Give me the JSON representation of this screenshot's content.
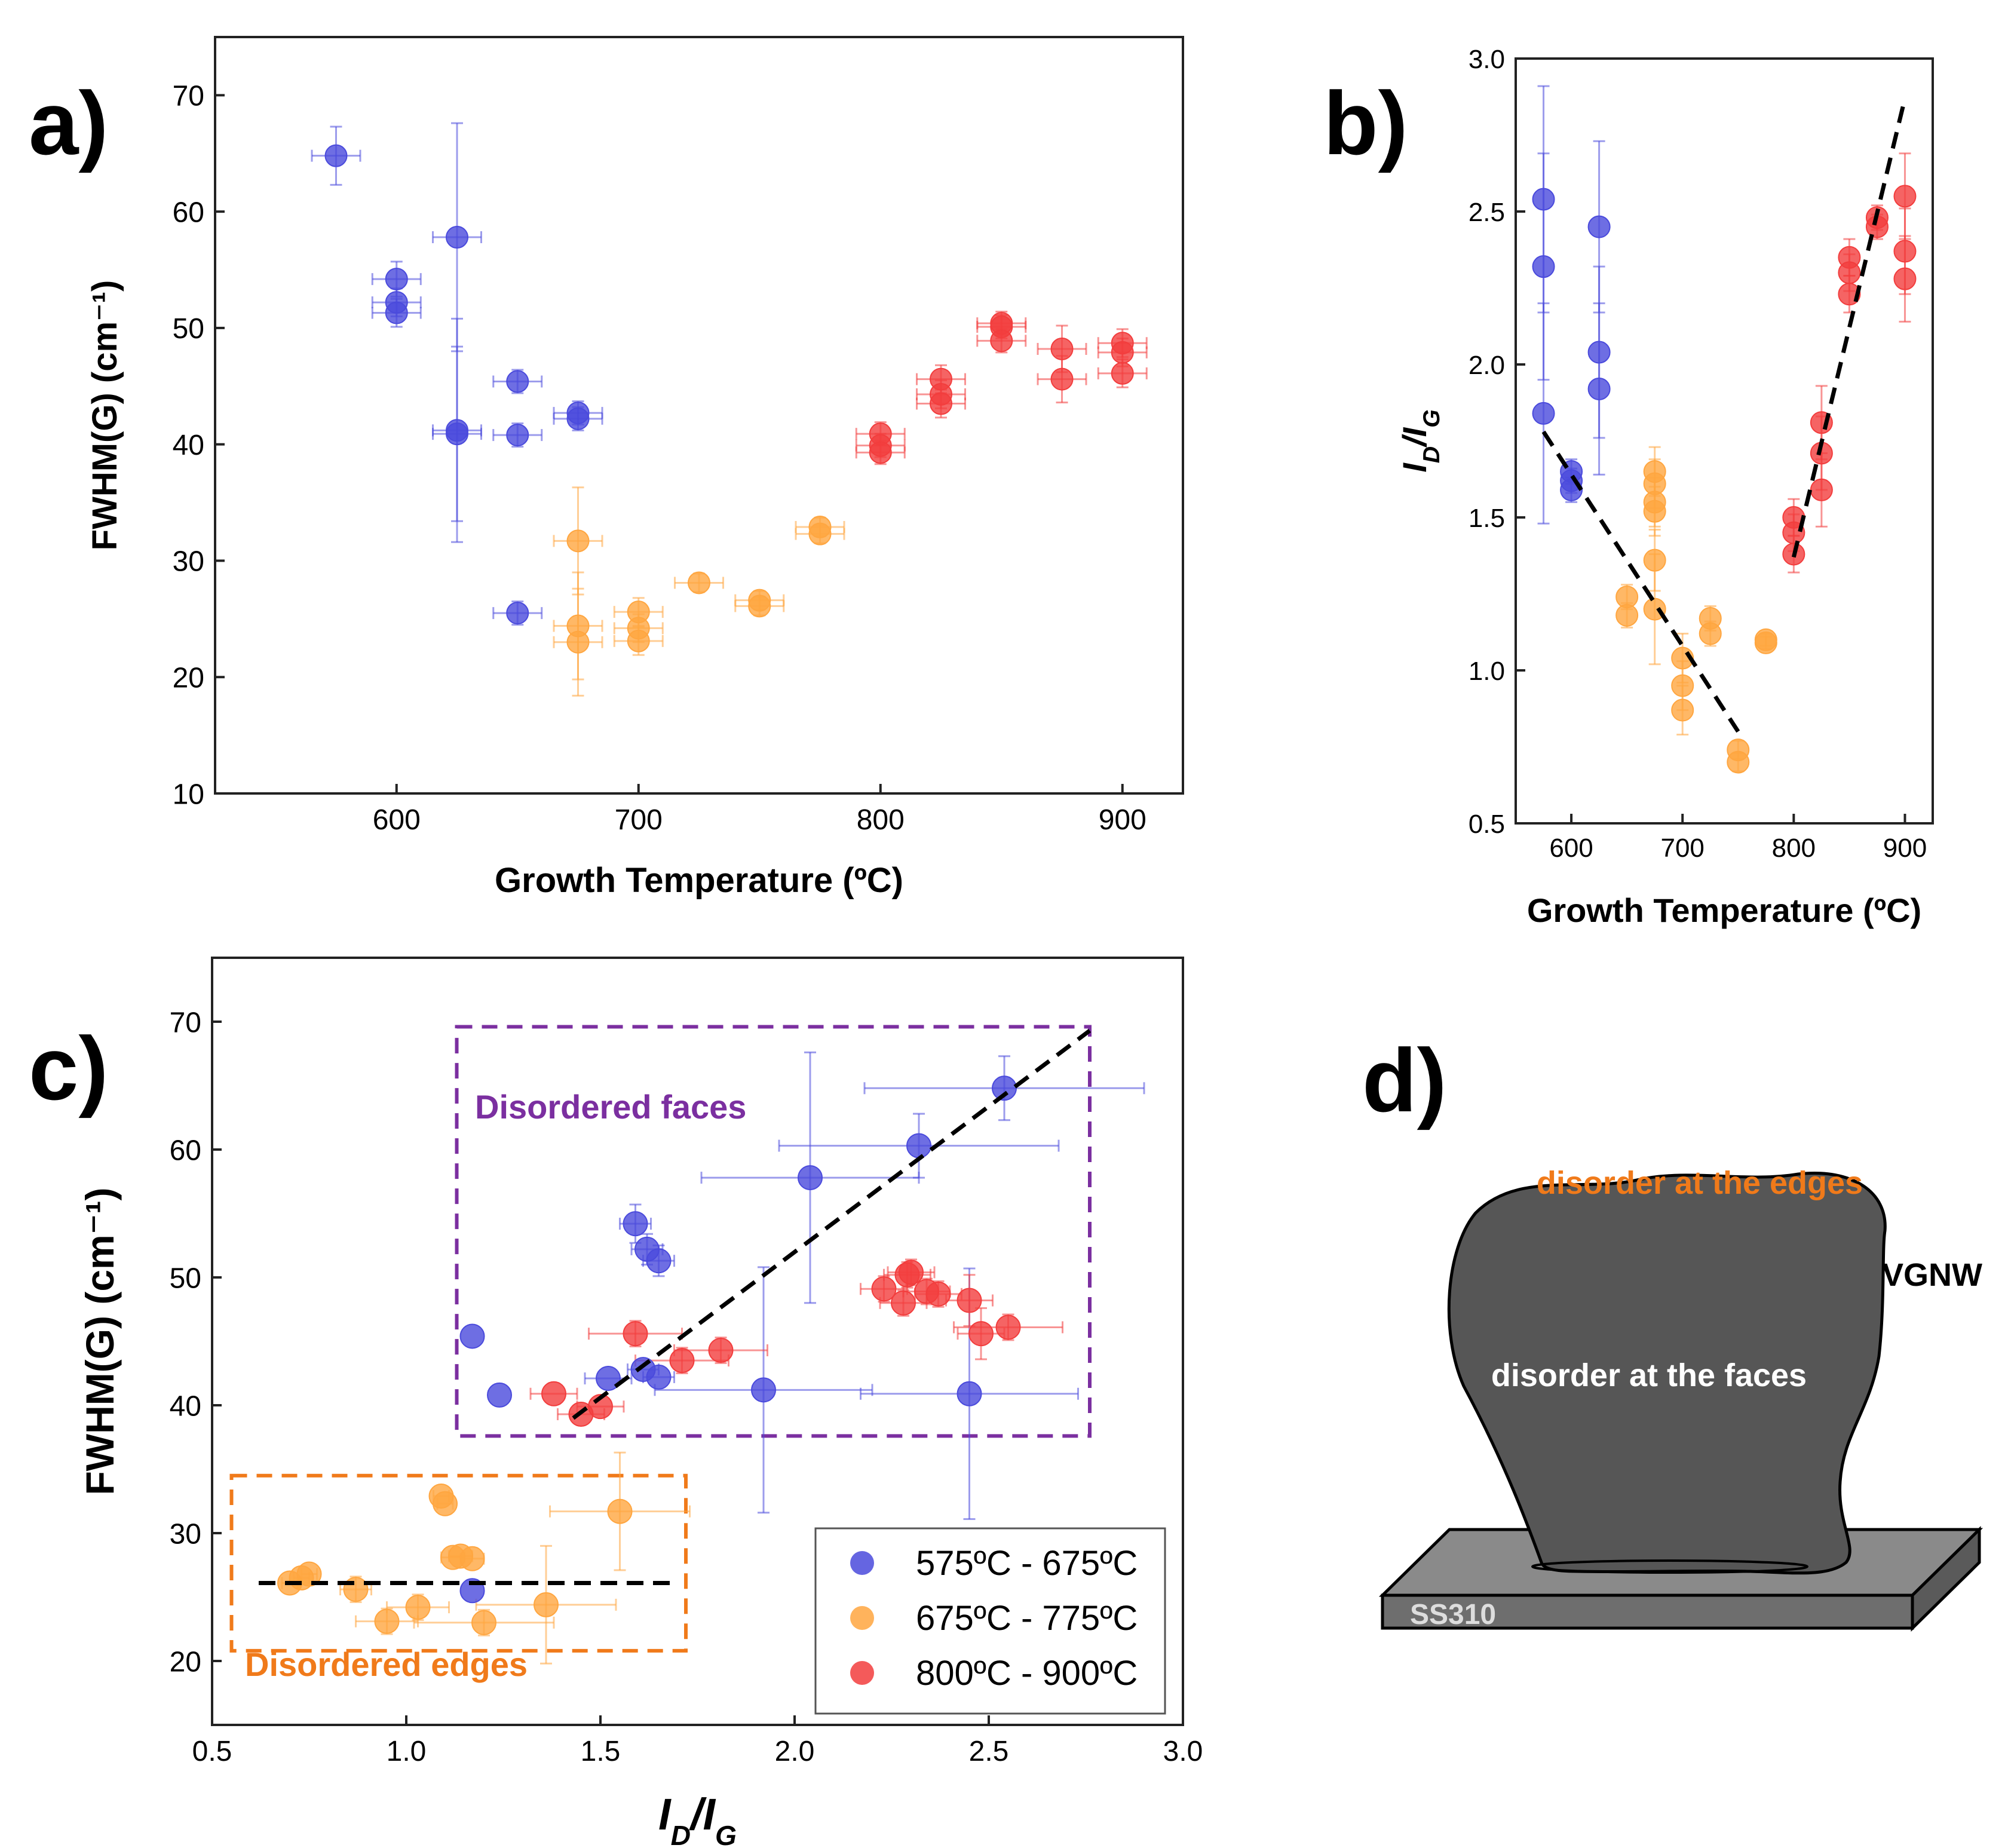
{
  "colors": {
    "blue": "#4a4adc",
    "orange": "#ffa640",
    "red": "#f23d3d",
    "axis": "#222222",
    "trend": "#000000",
    "purple_box": "#7b2fa0",
    "orange_box": "#f07a1a",
    "nanowire": "#505050",
    "substrate_top": "#8a8a8a",
    "substrate_side": "#6a6a6a"
  },
  "panel_labels": {
    "a": "a)",
    "b": "b)",
    "c": "c)",
    "d": "d)"
  },
  "chart_data": [
    {
      "id": "a",
      "type": "scatter",
      "xlabel": "Growth Temperature (ºC)",
      "ylabel": "FWHM(G) (cm⁻¹)",
      "xlim": [
        525,
        925
      ],
      "ylim": [
        10,
        75
      ],
      "xticks": [
        600,
        700,
        800,
        900
      ],
      "yticks": [
        10,
        20,
        30,
        40,
        50,
        60,
        70
      ],
      "series": [
        {
          "name": "575ºC - 675ºC",
          "color_key": "blue",
          "points": [
            {
              "x": 575,
              "y": 64.8,
              "ex": 10,
              "ey": 2.5
            },
            {
              "x": 600,
              "y": 54.2,
              "ex": 10,
              "ey": 1.5
            },
            {
              "x": 600,
              "y": 52.2,
              "ex": 10,
              "ey": 1.2
            },
            {
              "x": 600,
              "y": 51.3,
              "ex": 10,
              "ey": 1.2
            },
            {
              "x": 625,
              "y": 57.8,
              "ex": 10,
              "ey": 9.8
            },
            {
              "x": 625,
              "y": 41.2,
              "ex": 10,
              "ey": 9.6
            },
            {
              "x": 625,
              "y": 40.9,
              "ex": 10,
              "ey": 7.5
            },
            {
              "x": 650,
              "y": 45.4,
              "ex": 10,
              "ey": 1
            },
            {
              "x": 650,
              "y": 40.8,
              "ex": 10,
              "ey": 1
            },
            {
              "x": 675,
              "y": 42.7,
              "ex": 10,
              "ey": 1
            },
            {
              "x": 675,
              "y": 42.2,
              "ex": 10,
              "ey": 1
            },
            {
              "x": 650,
              "y": 25.5,
              "ex": 10,
              "ey": 1
            }
          ]
        },
        {
          "name": "675ºC - 775ºC",
          "color_key": "orange",
          "points": [
            {
              "x": 675,
              "y": 31.7,
              "ex": 10,
              "ey": 4.6
            },
            {
              "x": 675,
              "y": 24.4,
              "ex": 10,
              "ey": 4.6
            },
            {
              "x": 675,
              "y": 23.0,
              "ex": 10,
              "ey": 4.6
            },
            {
              "x": 700,
              "y": 25.6,
              "ex": 10,
              "ey": 1.2
            },
            {
              "x": 700,
              "y": 24.2,
              "ex": 10,
              "ey": 1.2
            },
            {
              "x": 700,
              "y": 23.1,
              "ex": 10,
              "ey": 1.2
            },
            {
              "x": 725,
              "y": 28.1,
              "ex": 10,
              "ey": 0.8
            },
            {
              "x": 750,
              "y": 26.6,
              "ex": 10,
              "ey": 0.8
            },
            {
              "x": 750,
              "y": 26.1,
              "ex": 10,
              "ey": 0.8
            },
            {
              "x": 775,
              "y": 32.9,
              "ex": 10,
              "ey": 0.8
            },
            {
              "x": 775,
              "y": 32.3,
              "ex": 10,
              "ey": 0.8
            }
          ]
        },
        {
          "name": "800ºC - 900ºC",
          "color_key": "red",
          "points": [
            {
              "x": 800,
              "y": 40.9,
              "ex": 10,
              "ey": 1
            },
            {
              "x": 800,
              "y": 39.9,
              "ex": 10,
              "ey": 1
            },
            {
              "x": 800,
              "y": 39.3,
              "ex": 10,
              "ey": 1
            },
            {
              "x": 825,
              "y": 45.6,
              "ex": 10,
              "ey": 1.2
            },
            {
              "x": 825,
              "y": 44.3,
              "ex": 10,
              "ey": 1.2
            },
            {
              "x": 825,
              "y": 43.5,
              "ex": 10,
              "ey": 1.2
            },
            {
              "x": 850,
              "y": 50.4,
              "ex": 10,
              "ey": 1
            },
            {
              "x": 850,
              "y": 50.1,
              "ex": 10,
              "ey": 1
            },
            {
              "x": 850,
              "y": 48.9,
              "ex": 10,
              "ey": 1
            },
            {
              "x": 875,
              "y": 48.2,
              "ex": 10,
              "ey": 2
            },
            {
              "x": 875,
              "y": 45.6,
              "ex": 10,
              "ey": 2
            },
            {
              "x": 900,
              "y": 48.7,
              "ex": 10,
              "ey": 1.2
            },
            {
              "x": 900,
              "y": 47.9,
              "ex": 10,
              "ey": 1.2
            },
            {
              "x": 900,
              "y": 46.1,
              "ex": 10,
              "ey": 1.2
            }
          ]
        }
      ]
    },
    {
      "id": "b",
      "type": "scatter",
      "xlabel": "Growth Temperature (ºC)",
      "ylabel": "ID/IG",
      "xlim": [
        550,
        925
      ],
      "ylim": [
        0.5,
        3.0
      ],
      "xticks": [
        600,
        700,
        800,
        900
      ],
      "yticks": [
        0.5,
        1.0,
        1.5,
        2.0,
        2.5,
        3.0
      ],
      "trend_lines": [
        {
          "x1": 575,
          "y1": 1.78,
          "x2": 750,
          "y2": 0.8
        },
        {
          "x1": 800,
          "y1": 1.37,
          "x2": 900,
          "y2": 2.87
        }
      ],
      "series": [
        {
          "name": "575ºC - 675ºC",
          "color_key": "blue",
          "points": [
            {
              "x": 575,
              "y": 2.54,
              "ey": 0.37
            },
            {
              "x": 575,
              "y": 2.32,
              "ey": 0.37
            },
            {
              "x": 575,
              "y": 1.84,
              "ey": 0.36
            },
            {
              "x": 600,
              "y": 1.65,
              "ey": 0.04
            },
            {
              "x": 600,
              "y": 1.62,
              "ey": 0.04
            },
            {
              "x": 600,
              "y": 1.59,
              "ey": 0.04
            },
            {
              "x": 625,
              "y": 2.45,
              "ey": 0.28
            },
            {
              "x": 625,
              "y": 2.04,
              "ey": 0.28
            },
            {
              "x": 625,
              "y": 1.92,
              "ey": 0.28
            }
          ]
        },
        {
          "name": "675ºC - 775ºC",
          "color_key": "orange",
          "points": [
            {
              "x": 650,
              "y": 1.24,
              "ey": 0.04
            },
            {
              "x": 650,
              "y": 1.18,
              "ey": 0.04
            },
            {
              "x": 675,
              "y": 1.65,
              "ey": 0.08
            },
            {
              "x": 675,
              "y": 1.61,
              "ey": 0.08
            },
            {
              "x": 675,
              "y": 1.55,
              "ey": 0.08
            },
            {
              "x": 675,
              "y": 1.52,
              "ey": 0.08
            },
            {
              "x": 675,
              "y": 1.36,
              "ey": 0.1
            },
            {
              "x": 675,
              "y": 1.2,
              "ey": 0.18
            },
            {
              "x": 700,
              "y": 1.04,
              "ey": 0.08
            },
            {
              "x": 700,
              "y": 0.95,
              "ey": 0.08
            },
            {
              "x": 700,
              "y": 0.87,
              "ey": 0.08
            },
            {
              "x": 725,
              "y": 1.17,
              "ey": 0.04
            },
            {
              "x": 725,
              "y": 1.12,
              "ey": 0.04
            },
            {
              "x": 750,
              "y": 0.74,
              "ey": 0.03
            },
            {
              "x": 750,
              "y": 0.7,
              "ey": 0.03
            },
            {
              "x": 775,
              "y": 1.1,
              "ey": 0.02
            },
            {
              "x": 775,
              "y": 1.09,
              "ey": 0.02
            }
          ]
        },
        {
          "name": "800ºC - 900ºC",
          "color_key": "red",
          "points": [
            {
              "x": 800,
              "y": 1.5,
              "ey": 0.06
            },
            {
              "x": 800,
              "y": 1.45,
              "ey": 0.06
            },
            {
              "x": 800,
              "y": 1.38,
              "ey": 0.06
            },
            {
              "x": 825,
              "y": 1.81,
              "ey": 0.12
            },
            {
              "x": 825,
              "y": 1.71,
              "ey": 0.12
            },
            {
              "x": 825,
              "y": 1.59,
              "ey": 0.12
            },
            {
              "x": 850,
              "y": 2.35,
              "ey": 0.06
            },
            {
              "x": 850,
              "y": 2.3,
              "ey": 0.06
            },
            {
              "x": 850,
              "y": 2.23,
              "ey": 0.06
            },
            {
              "x": 875,
              "y": 2.48,
              "ey": 0.04
            },
            {
              "x": 875,
              "y": 2.45,
              "ey": 0.04
            },
            {
              "x": 900,
              "y": 2.55,
              "ey": 0.14
            },
            {
              "x": 900,
              "y": 2.37,
              "ey": 0.14
            },
            {
              "x": 900,
              "y": 2.28,
              "ey": 0.14
            }
          ]
        }
      ]
    },
    {
      "id": "c",
      "type": "scatter",
      "xlabel": "ID/IG",
      "ylabel": "FWHM(G) (cm⁻¹)",
      "xlim": [
        0.5,
        3.0
      ],
      "ylim": [
        15,
        75
      ],
      "xticks": [
        0.5,
        1.0,
        1.5,
        2.0,
        2.5,
        3.0
      ],
      "yticks": [
        20,
        30,
        40,
        50,
        60,
        70
      ],
      "legend": {
        "position": "bottom-right",
        "entries": [
          "575ºC - 675ºC",
          "675ºC - 775ºC",
          "800ºC - 900ºC"
        ]
      },
      "annotations": {
        "faces_label": "Disordered faces",
        "edges_label": "Disordered edges"
      },
      "regions": [
        {
          "name": "faces",
          "x1": 1.13,
          "x2": 2.76,
          "y1": 37.6,
          "y2": 69.6,
          "color_key": "purple_box"
        },
        {
          "name": "edges",
          "x1": 0.55,
          "x2": 1.72,
          "y1": 20.8,
          "y2": 34.5,
          "color_key": "orange_box"
        }
      ],
      "trend_lines": [
        {
          "x1": 1.43,
          "y1": 39.0,
          "x2": 2.76,
          "y2": 69.3
        },
        {
          "x1": 0.62,
          "y1": 26.1,
          "x2": 1.69,
          "y2": 26.1
        }
      ],
      "series": [
        {
          "name": "575ºC - 675ºC",
          "color_key": "blue",
          "points": [
            {
              "x": 2.54,
              "y": 64.8,
              "ex": 0.36,
              "ey": 2.5
            },
            {
              "x": 2.32,
              "y": 60.3,
              "ex": 0.36,
              "ey": 2.5
            },
            {
              "x": 2.04,
              "y": 57.8,
              "ex": 0.28,
              "ey": 9.8
            },
            {
              "x": 1.59,
              "y": 54.2,
              "ex": 0.04,
              "ey": 1.5
            },
            {
              "x": 1.62,
              "y": 52.2,
              "ex": 0.04,
              "ey": 1.2
            },
            {
              "x": 1.65,
              "y": 51.3,
              "ex": 0.04,
              "ey": 1.2
            },
            {
              "x": 1.17,
              "y": 45.4,
              "ex": 0,
              "ey": 0
            },
            {
              "x": 1.24,
              "y": 40.8,
              "ex": 0,
              "ey": 0
            },
            {
              "x": 1.52,
              "y": 42.1,
              "ex": 0.06,
              "ey": 0
            },
            {
              "x": 1.61,
              "y": 42.8,
              "ex": 0.04,
              "ey": 0
            },
            {
              "x": 1.65,
              "y": 42.2,
              "ex": 0.04,
              "ey": 0
            },
            {
              "x": 1.92,
              "y": 41.2,
              "ex": 0.28,
              "ey": 9.6
            },
            {
              "x": 2.45,
              "y": 40.9,
              "ex": 0.28,
              "ey": 9.8
            },
            {
              "x": 1.17,
              "y": 25.5,
              "ex": 0,
              "ey": 0
            }
          ]
        },
        {
          "name": "675ºC - 775ºC",
          "color_key": "orange",
          "points": [
            {
              "x": 0.7,
              "y": 26.1,
              "ex": 0.02,
              "ey": 0
            },
            {
              "x": 0.73,
              "y": 26.5,
              "ex": 0.02,
              "ey": 0
            },
            {
              "x": 0.75,
              "y": 26.8,
              "ex": 0.02,
              "ey": 0
            },
            {
              "x": 0.87,
              "y": 25.6,
              "ex": 0.04,
              "ey": 1
            },
            {
              "x": 0.95,
              "y": 23.1,
              "ex": 0.08,
              "ey": 1
            },
            {
              "x": 1.03,
              "y": 24.2,
              "ex": 0.08,
              "ey": 1
            },
            {
              "x": 1.09,
              "y": 32.9,
              "ex": 0.02,
              "ey": 0
            },
            {
              "x": 1.1,
              "y": 32.3,
              "ex": 0.02,
              "ey": 0
            },
            {
              "x": 1.12,
              "y": 28.1,
              "ex": 0.03,
              "ey": 0
            },
            {
              "x": 1.14,
              "y": 28.2,
              "ex": 0.03,
              "ey": 0
            },
            {
              "x": 1.17,
              "y": 28.0,
              "ex": 0.03,
              "ey": 0
            },
            {
              "x": 1.2,
              "y": 23.0,
              "ex": 0.18,
              "ey": 1
            },
            {
              "x": 1.36,
              "y": 24.4,
              "ex": 0.18,
              "ey": 4.6
            },
            {
              "x": 1.55,
              "y": 31.7,
              "ex": 0.18,
              "ey": 4.6
            }
          ]
        },
        {
          "name": "800ºC - 900ºC",
          "color_key": "red",
          "points": [
            {
              "x": 1.38,
              "y": 40.9,
              "ex": 0.06,
              "ey": 0
            },
            {
              "x": 1.45,
              "y": 39.3,
              "ex": 0.06,
              "ey": 0
            },
            {
              "x": 1.5,
              "y": 39.9,
              "ex": 0.06,
              "ey": 0
            },
            {
              "x": 1.59,
              "y": 45.6,
              "ex": 0.12,
              "ey": 1
            },
            {
              "x": 1.71,
              "y": 43.5,
              "ex": 0.12,
              "ey": 1
            },
            {
              "x": 1.81,
              "y": 44.3,
              "ex": 0.12,
              "ey": 1
            },
            {
              "x": 2.23,
              "y": 49.1,
              "ex": 0.06,
              "ey": 1
            },
            {
              "x": 2.28,
              "y": 48.0,
              "ex": 0.06,
              "ey": 1
            },
            {
              "x": 2.29,
              "y": 50.2,
              "ex": 0.06,
              "ey": 1
            },
            {
              "x": 2.3,
              "y": 50.4,
              "ex": 0.06,
              "ey": 1
            },
            {
              "x": 2.34,
              "y": 48.9,
              "ex": 0.06,
              "ey": 1
            },
            {
              "x": 2.37,
              "y": 48.7,
              "ex": 0.06,
              "ey": 1
            },
            {
              "x": 2.45,
              "y": 48.2,
              "ex": 0.06,
              "ey": 2
            },
            {
              "x": 2.48,
              "y": 45.6,
              "ex": 0.06,
              "ey": 2
            },
            {
              "x": 2.55,
              "y": 46.1,
              "ex": 0.14,
              "ey": 1
            }
          ]
        }
      ]
    }
  ],
  "schematic": {
    "edges_label": "disorder at the edges",
    "faces_label": "disorder at the faces",
    "wire_label": "VGNW",
    "substrate_label": "SS310"
  }
}
